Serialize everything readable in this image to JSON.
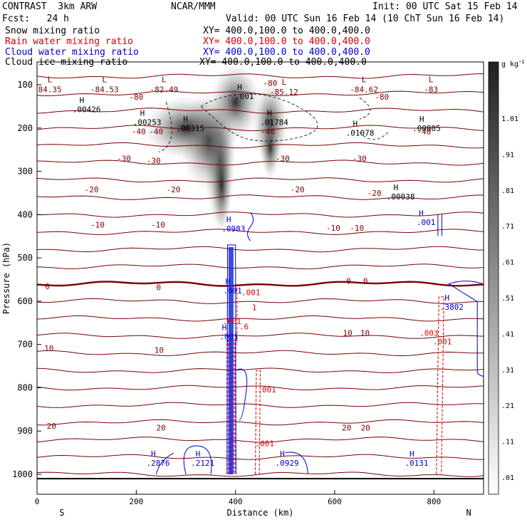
{
  "header": {
    "left1": "CONTRAST  3km ARW",
    "center1": "NCAR/MMM",
    "right1": "Init: 00 UTC Sat 15 Feb 14",
    "left2": "Fcst:   24 h",
    "right2": "Valid: 00 UTC Sun 16 Feb 14 (10 ChT Sun 16 Feb 14)",
    "legend": [
      {
        "name": "Snow mixing ratio",
        "xy": "XY= 400.0,100.0 to 400.0,400.0",
        "color": "#000000"
      },
      {
        "name": "Rain water mixing ratio",
        "xy": "XY= 400.0,100.0 to 400.0,400.0",
        "color": "#d00000"
      },
      {
        "name": "Cloud water mixing ratio",
        "xy": "XY= 400.0,100.0 to 400.0,400.0",
        "color": "#0000cc"
      },
      {
        "name": "Cloud ice mixing ratio",
        "xy": "XY= 400.0,100.0 to 400.0,400.0",
        "color": "#000000"
      }
    ]
  },
  "chart_data": {
    "type": "cross-section",
    "xlabel": "Distance (km)",
    "ylabel": "Pressure (hPa)",
    "xlim": [
      0,
      900
    ],
    "ylim": [
      1050,
      60
    ],
    "xticks": [
      0,
      200,
      400,
      600,
      800
    ],
    "yticks": [
      100,
      200,
      300,
      400,
      500,
      600,
      700,
      800,
      900,
      1000
    ],
    "end_labels": {
      "left": "S",
      "right": "N"
    },
    "colorbar": {
      "unit": "g kg",
      "unit_exp": "−1",
      "labels": [
        ".01",
        ".11",
        ".21",
        ".31",
        ".41",
        ".51",
        ".61",
        ".71",
        ".81",
        ".91",
        "1.01"
      ]
    },
    "isotherm_labels": [
      {
        "x": 205,
        "p": 208,
        "text": "-40"
      },
      {
        "x": 240,
        "p": 208,
        "text": "-40"
      },
      {
        "x": 465,
        "p": 208,
        "text": "-40"
      },
      {
        "x": 780,
        "p": 208,
        "text": "-40"
      },
      {
        "x": 200,
        "p": 128,
        "text": "-80"
      },
      {
        "x": 470,
        "p": 96,
        "text": "-80"
      },
      {
        "x": 695,
        "p": 128,
        "text": "-80"
      },
      {
        "x": 175,
        "p": 270,
        "text": "-30"
      },
      {
        "x": 235,
        "p": 275,
        "text": "-30"
      },
      {
        "x": 495,
        "p": 270,
        "text": "-30"
      },
      {
        "x": 650,
        "p": 270,
        "text": "-30"
      },
      {
        "x": 110,
        "p": 342,
        "text": "-20"
      },
      {
        "x": 275,
        "p": 342,
        "text": "-20"
      },
      {
        "x": 525,
        "p": 342,
        "text": "-20"
      },
      {
        "x": 680,
        "p": 350,
        "text": "-20"
      },
      {
        "x": 122,
        "p": 423,
        "text": "-10"
      },
      {
        "x": 244,
        "p": 423,
        "text": "-10"
      },
      {
        "x": 597,
        "p": 431,
        "text": "-10"
      },
      {
        "x": 645,
        "p": 431,
        "text": "-10"
      },
      {
        "x": 21,
        "p": 566,
        "text": "0"
      },
      {
        "x": 245,
        "p": 568,
        "text": "0"
      },
      {
        "x": 628,
        "p": 553,
        "text": "0"
      },
      {
        "x": 662,
        "p": 553,
        "text": "0"
      },
      {
        "x": 24,
        "p": 709,
        "text": "10"
      },
      {
        "x": 246,
        "p": 713,
        "text": "10"
      },
      {
        "x": 626,
        "p": 673,
        "text": "10"
      },
      {
        "x": 661,
        "p": 673,
        "text": "10"
      },
      {
        "x": 29,
        "p": 888,
        "text": "20"
      },
      {
        "x": 250,
        "p": 892,
        "text": "20"
      },
      {
        "x": 624,
        "p": 892,
        "text": "20"
      },
      {
        "x": 662,
        "p": 892,
        "text": "20"
      }
    ],
    "pressure_labels": [
      {
        "x": 26,
        "p": 112,
        "text": "84.35"
      },
      {
        "x": 136,
        "p": 112,
        "text": "-84.53"
      },
      {
        "x": 256,
        "p": 112,
        "text": "-82.49"
      },
      {
        "x": 498,
        "p": 118,
        "text": "-85.12"
      },
      {
        "x": 659,
        "p": 112,
        "text": "-84.62"
      },
      {
        "x": 794,
        "p": 112,
        "text": "-83"
      }
    ],
    "ice_labels": [
      {
        "x": 100,
        "p": 160,
        "text": ".00426"
      },
      {
        "x": 222,
        "p": 190,
        "text": ".00253"
      },
      {
        "x": 309,
        "p": 204,
        "text": ".00315"
      },
      {
        "x": 418,
        "p": 130,
        "text": ".001"
      },
      {
        "x": 478,
        "p": 190,
        "text": ".01784"
      },
      {
        "x": 651,
        "p": 214,
        "text": ".01078"
      },
      {
        "x": 785,
        "p": 204,
        "text": ".00805"
      },
      {
        "x": 733,
        "p": 362,
        "text": ".00038"
      }
    ],
    "cloud_labels": [
      {
        "x": 396,
        "p": 436,
        "text": ".0983"
      },
      {
        "x": 784,
        "p": 421,
        "text": ".001"
      },
      {
        "x": 836,
        "p": 617,
        "text": ".3802"
      },
      {
        "x": 244,
        "p": 977,
        "text": ".2876"
      },
      {
        "x": 334,
        "p": 977,
        "text": ".2121"
      },
      {
        "x": 504,
        "p": 977,
        "text": ".0929"
      },
      {
        "x": 765,
        "p": 977,
        "text": ".0131"
      },
      {
        "x": 394,
        "p": 579,
        "text": ".001"
      },
      {
        "x": 387,
        "p": 685,
        "text": ".001"
      }
    ],
    "rain_labels": [
      {
        "x": 431,
        "p": 581,
        "text": ".001"
      },
      {
        "x": 417,
        "p": 660,
        "text": ".6"
      },
      {
        "x": 463,
        "p": 806,
        "text": ".001"
      },
      {
        "x": 459,
        "p": 930,
        "text": ".001"
      },
      {
        "x": 790,
        "p": 675,
        "text": ".003"
      },
      {
        "x": 817,
        "p": 695,
        "text": ".001"
      },
      {
        "x": 438,
        "p": 616,
        "text": "1"
      },
      {
        "x": 393,
        "p": 648,
        "text": ".001"
      }
    ]
  }
}
